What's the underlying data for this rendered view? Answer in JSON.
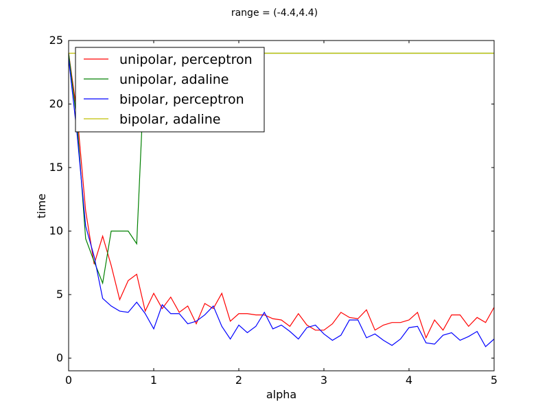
{
  "chart_data": {
    "type": "line",
    "title": "range = (-4.4,4.4)",
    "xlabel": "alpha",
    "ylabel": "time",
    "xlim": [
      0,
      5
    ],
    "ylim": [
      -1,
      25
    ],
    "xticks": [
      0,
      1,
      2,
      3,
      4,
      5
    ],
    "yticks": [
      0,
      5,
      10,
      15,
      20,
      25
    ],
    "grid": false,
    "legend_position": "top-left",
    "x": [
      0.0,
      0.1,
      0.2,
      0.3,
      0.4,
      0.5,
      0.6,
      0.7,
      0.8,
      0.9,
      1.0,
      1.1,
      1.2,
      1.3,
      1.4,
      1.5,
      1.6,
      1.7,
      1.8,
      1.9,
      2.0,
      2.1,
      2.2,
      2.3,
      2.4,
      2.5,
      2.6,
      2.7,
      2.8,
      2.9,
      3.0,
      3.1,
      3.2,
      3.3,
      3.4,
      3.5,
      3.6,
      3.7,
      3.8,
      3.9,
      4.0,
      4.1,
      4.2,
      4.3,
      4.4,
      4.5,
      4.6,
      4.7,
      4.8,
      4.9,
      5.0
    ],
    "series": [
      {
        "name": "unipolar, perceptron",
        "color": "#ff0000",
        "values": [
          24.0,
          19.2,
          11.6,
          7.4,
          9.6,
          7.3,
          4.6,
          6.1,
          6.6,
          3.7,
          5.1,
          3.9,
          4.8,
          3.6,
          4.1,
          2.7,
          4.3,
          3.9,
          5.1,
          2.9,
          3.5,
          3.5,
          3.4,
          3.4,
          3.1,
          3.0,
          2.5,
          3.5,
          2.6,
          2.2,
          2.2,
          2.7,
          3.6,
          3.2,
          3.1,
          3.8,
          2.2,
          2.6,
          2.8,
          2.8,
          3.0,
          3.6,
          1.6,
          3.0,
          2.2,
          3.4,
          3.4,
          2.5,
          3.2,
          2.8,
          4.0
        ]
      },
      {
        "name": "unipolar, adaline",
        "color": "#008000",
        "values": [
          24.0,
          18.5,
          9.4,
          7.6,
          5.9,
          10.0,
          10.0,
          10.0,
          9.0,
          24.0,
          24.0,
          24.0,
          24.0,
          24.0,
          24.0,
          24.0,
          24.0,
          24.0,
          24.0,
          24.0,
          24.0,
          24.0,
          24.0,
          24.0,
          24.0,
          24.0,
          24.0,
          24.0,
          24.0,
          24.0,
          24.0,
          24.0,
          24.0,
          24.0,
          24.0,
          24.0,
          24.0,
          24.0,
          24.0,
          24.0,
          24.0,
          24.0,
          24.0,
          24.0,
          24.0,
          24.0,
          24.0,
          24.0,
          24.0,
          24.0,
          24.0
        ]
      },
      {
        "name": "bipolar, perceptron",
        "color": "#0000ff",
        "values": [
          23.6,
          17.6,
          10.4,
          8.0,
          4.7,
          4.1,
          3.7,
          3.6,
          4.4,
          3.5,
          2.3,
          4.2,
          3.5,
          3.5,
          2.7,
          2.9,
          3.4,
          4.1,
          2.5,
          1.5,
          2.6,
          2.0,
          2.5,
          3.6,
          2.3,
          2.6,
          2.1,
          1.5,
          2.4,
          2.6,
          1.9,
          1.4,
          1.8,
          3.0,
          3.0,
          1.6,
          1.9,
          1.4,
          1.0,
          1.5,
          2.4,
          2.5,
          1.2,
          1.1,
          1.8,
          2.0,
          1.4,
          1.7,
          2.1,
          0.9,
          1.5
        ]
      },
      {
        "name": "bipolar, adaline",
        "color": "#bfbf00",
        "values": [
          24.0,
          24.0,
          24.0,
          24.0,
          24.0,
          24.0,
          24.0,
          24.0,
          24.0,
          24.0,
          24.0,
          24.0,
          24.0,
          24.0,
          24.0,
          24.0,
          24.0,
          24.0,
          24.0,
          24.0,
          24.0,
          24.0,
          24.0,
          24.0,
          24.0,
          24.0,
          24.0,
          24.0,
          24.0,
          24.0,
          24.0,
          24.0,
          24.0,
          24.0,
          24.0,
          24.0,
          24.0,
          24.0,
          24.0,
          24.0,
          24.0,
          24.0,
          24.0,
          24.0,
          24.0,
          24.0,
          24.0,
          24.0,
          24.0,
          24.0,
          24.0
        ]
      }
    ]
  }
}
